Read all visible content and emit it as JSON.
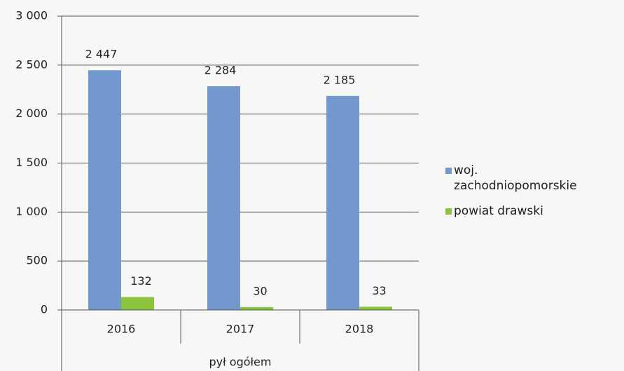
{
  "chart_data": {
    "type": "bar",
    "categories": [
      "2016",
      "2017",
      "2018"
    ],
    "group_label": "pył ogółem",
    "series": [
      {
        "name": "woj. zachodniopomorskie",
        "color": "#7398cd",
        "values": [
          2447,
          2284,
          2185
        ],
        "value_labels": [
          "2 447",
          "2 284",
          "2 185"
        ]
      },
      {
        "name": "powiat drawski",
        "color": "#8cc43e",
        "values": [
          132,
          30,
          33
        ]
      }
    ],
    "ylim": [
      0,
      3000
    ],
    "yticks": [
      0,
      500,
      {
        "value": 1000,
        "label": "1 000"
      },
      {
        "value": 1500,
        "label": "1 500"
      },
      {
        "value": 2000,
        "label": "2 000"
      },
      {
        "value": 2500,
        "label": "2 500"
      },
      {
        "value": 3000,
        "label": "3 000"
      }
    ],
    "grid": true
  }
}
